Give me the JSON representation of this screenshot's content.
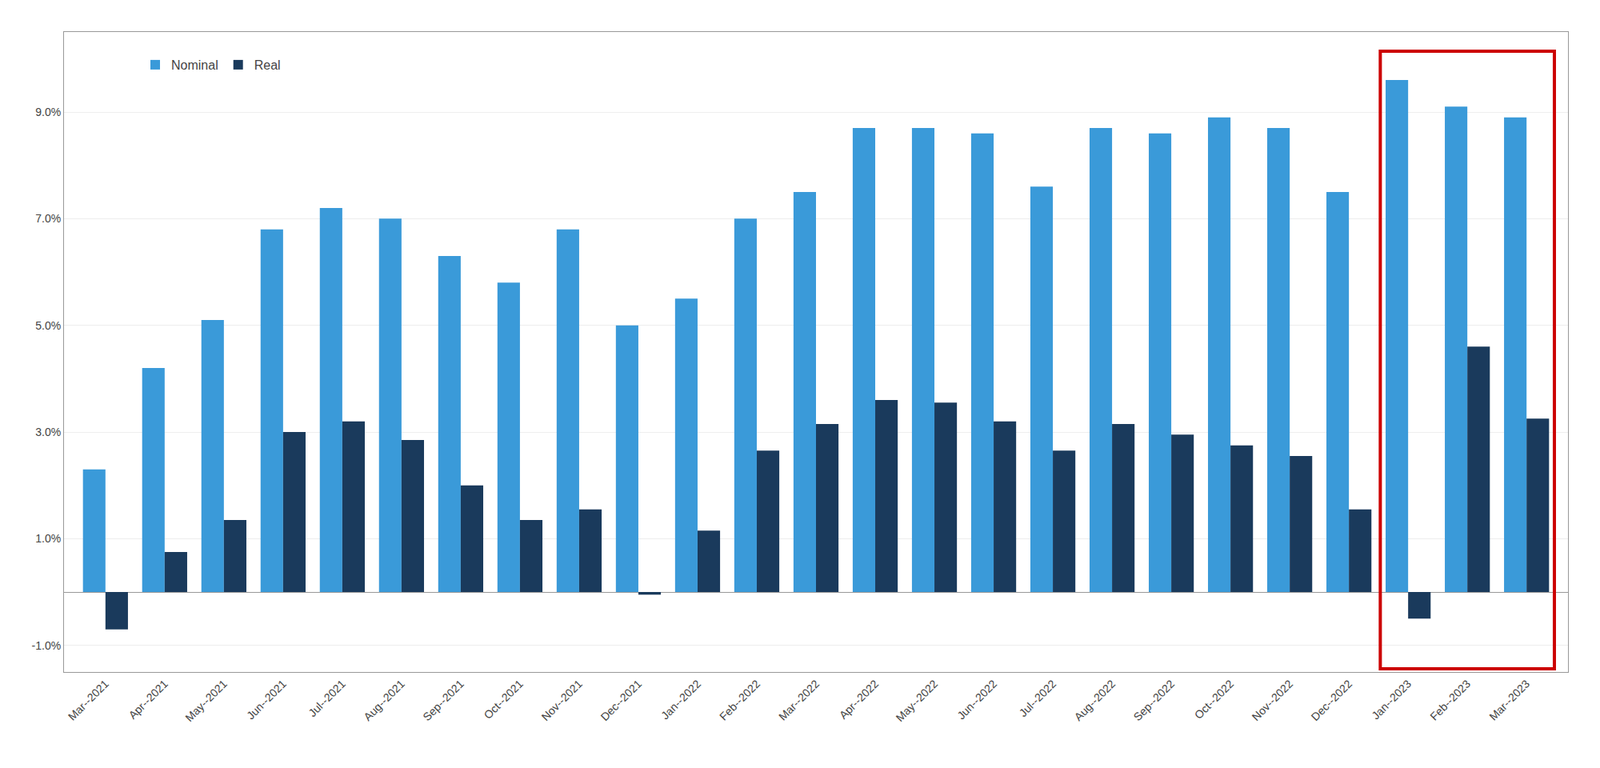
{
  "chart_data": {
    "type": "bar",
    "categories": [
      "Mar--2021",
      "Apr--2021",
      "May--2021",
      "Jun--2021",
      "Jul--2021",
      "Aug--2021",
      "Sep--2021",
      "Oct--2021",
      "Nov--2021",
      "Dec--2021",
      "Jan--2022",
      "Feb--2022",
      "Mar--2022",
      "Apr--2022",
      "May--2022",
      "Jun--2022",
      "Jul--2022",
      "Aug--2022",
      "Sep--2022",
      "Oct--2022",
      "Nov--2022",
      "Dec--2022",
      "Jan--2023",
      "Feb--2023",
      "Mar--2023"
    ],
    "series": [
      {
        "name": "Nominal",
        "color": "#3a9ad9",
        "values": [
          2.3,
          4.2,
          5.1,
          6.8,
          7.2,
          7.0,
          6.3,
          5.8,
          6.8,
          5.0,
          5.5,
          7.0,
          7.5,
          8.7,
          8.7,
          8.6,
          7.6,
          8.7,
          8.6,
          8.9,
          8.7,
          7.5,
          9.6,
          9.1,
          8.9
        ]
      },
      {
        "name": "Real",
        "color": "#1a3a5c",
        "values": [
          -0.7,
          0.75,
          1.35,
          3.0,
          3.2,
          2.85,
          2.0,
          1.35,
          1.55,
          -0.05,
          1.15,
          2.65,
          3.15,
          3.6,
          3.55,
          3.2,
          2.65,
          3.15,
          2.95,
          2.75,
          2.55,
          1.55,
          -0.5,
          4.6,
          3.25
        ]
      }
    ],
    "ylim": [
      -1.5,
      10.5
    ],
    "yticks": [
      {
        "value": -1.0,
        "label": "-1.0%"
      },
      {
        "value": 1.0,
        "label": "1.0%"
      },
      {
        "value": 3.0,
        "label": "3.0%"
      },
      {
        "value": 5.0,
        "label": "5.0%"
      },
      {
        "value": 7.0,
        "label": "7.0%"
      },
      {
        "value": 9.0,
        "label": "9.0%"
      }
    ],
    "grid": true,
    "legend": "upper left",
    "highlight": {
      "categories": [
        "Jan--2023",
        "Feb--2023",
        "Mar--2023"
      ],
      "color": "#cc0000"
    }
  }
}
